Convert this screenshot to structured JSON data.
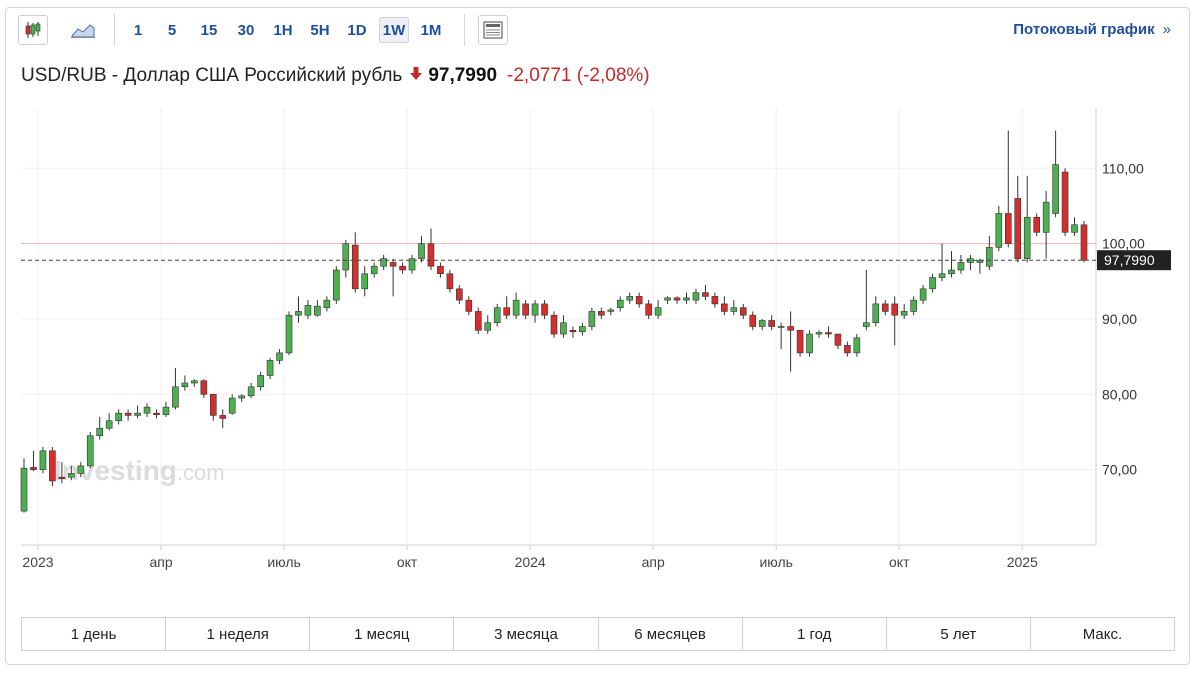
{
  "toolbar": {
    "chart_type_icons": [
      "candlestick-icon",
      "area-chart-icon"
    ],
    "intervals": [
      "1",
      "5",
      "15",
      "30",
      "1H",
      "5H",
      "1D",
      "1W",
      "1M"
    ],
    "active_interval": "1W",
    "layout_icon": "layout-icon",
    "stream_label": "Потоковый график",
    "stream_arrow": "»"
  },
  "quote": {
    "name": "USD/RUB - Доллар США Российский рубль",
    "direction": "down",
    "price": "97,7990",
    "change": "-2,0771",
    "change_pct": "(-2,08%)"
  },
  "watermark": {
    "text_dark": "Investing",
    "text_light": ".com"
  },
  "chart_data": {
    "type": "candlestick",
    "x_ticks": [
      "2023",
      "апр",
      "июль",
      "окт",
      "2024",
      "апр",
      "июль",
      "окт",
      "2025"
    ],
    "y_ticks": [
      "70,00",
      "80,00",
      "90,00",
      "100,00",
      "110,00"
    ],
    "y_tick_values": [
      70,
      80,
      90,
      100,
      110
    ],
    "ylim": [
      60,
      118
    ],
    "reference_level": 100.0,
    "current_price": 97.799,
    "current_price_label": "97,7990",
    "colors": {
      "up": "#4caf50",
      "down": "#d32f2f",
      "wick": "#333333",
      "reference": "#f4b8b0"
    },
    "candles": [
      [
        64.5,
        70.2,
        64.3,
        71.5
      ],
      [
        70.3,
        70.0,
        69.8,
        72.5
      ],
      [
        70.0,
        72.5,
        69.5,
        73.0
      ],
      [
        72.5,
        68.5,
        67.8,
        73.0
      ],
      [
        69.0,
        68.8,
        68.2,
        71.0
      ],
      [
        69.0,
        69.5,
        68.6,
        70.5
      ],
      [
        69.5,
        70.5,
        69.0,
        71.0
      ],
      [
        70.5,
        74.5,
        70.2,
        75.0
      ],
      [
        74.5,
        75.5,
        74.0,
        77.0
      ],
      [
        75.5,
        76.5,
        75.2,
        77.5
      ],
      [
        76.5,
        77.5,
        76.0,
        78.0
      ],
      [
        77.5,
        77.2,
        76.5,
        78.0
      ],
      [
        77.2,
        77.5,
        76.8,
        78.5
      ],
      [
        77.5,
        78.3,
        77.0,
        78.8
      ],
      [
        77.5,
        77.3,
        76.8,
        78.0
      ],
      [
        77.3,
        78.3,
        77.0,
        79.0
      ],
      [
        78.3,
        81.0,
        78.0,
        83.5
      ],
      [
        81.0,
        81.5,
        80.5,
        82.5
      ],
      [
        81.5,
        81.8,
        81.0,
        82.0
      ],
      [
        81.8,
        80.0,
        79.5,
        82.0
      ],
      [
        80.0,
        77.2,
        76.5,
        80.0
      ],
      [
        77.2,
        76.8,
        75.5,
        78.0
      ],
      [
        77.5,
        79.5,
        77.3,
        80.0
      ],
      [
        79.5,
        79.8,
        79.0,
        80.0
      ],
      [
        79.8,
        81.0,
        79.5,
        81.5
      ],
      [
        81.0,
        82.5,
        80.5,
        83.0
      ],
      [
        82.5,
        84.5,
        82.0,
        84.8
      ],
      [
        84.5,
        85.5,
        84.0,
        86.0
      ],
      [
        85.5,
        90.5,
        85.2,
        91.0
      ],
      [
        90.5,
        91.0,
        89.5,
        93.0
      ],
      [
        90.5,
        91.8,
        90.0,
        92.5
      ],
      [
        90.5,
        91.7,
        90.3,
        92.5
      ],
      [
        91.5,
        92.5,
        91.0,
        93.0
      ],
      [
        92.5,
        96.5,
        92.0,
        97.0
      ],
      [
        96.5,
        100.0,
        95.5,
        100.5
      ],
      [
        99.8,
        94.0,
        93.5,
        101.5
      ],
      [
        94.0,
        96.0,
        93.0,
        97.0
      ],
      [
        96.0,
        97.0,
        95.5,
        97.5
      ],
      [
        97.0,
        98.0,
        96.5,
        98.5
      ],
      [
        97.5,
        97.0,
        93.0,
        98.0
      ],
      [
        97.0,
        96.5,
        96.0,
        97.5
      ],
      [
        96.5,
        98.0,
        96.0,
        98.5
      ],
      [
        98.0,
        100.0,
        97.5,
        101.0
      ],
      [
        100.0,
        97.0,
        96.5,
        102.0
      ],
      [
        97.0,
        96.0,
        95.5,
        97.5
      ],
      [
        96.0,
        94.0,
        93.5,
        96.5
      ],
      [
        94.0,
        92.5,
        92.0,
        94.5
      ],
      [
        92.5,
        91.0,
        90.5,
        93.0
      ],
      [
        91.0,
        88.5,
        88.0,
        91.5
      ],
      [
        88.5,
        89.5,
        88.0,
        90.5
      ],
      [
        89.5,
        91.5,
        89.0,
        92.0
      ],
      [
        91.5,
        90.5,
        90.0,
        93.0
      ],
      [
        90.5,
        92.5,
        90.0,
        93.5
      ],
      [
        92.0,
        90.5,
        90.0,
        92.5
      ],
      [
        90.5,
        92.0,
        89.5,
        92.5
      ],
      [
        92.0,
        90.5,
        90.0,
        92.5
      ],
      [
        90.5,
        88.0,
        87.5,
        91.0
      ],
      [
        88.0,
        89.5,
        87.5,
        90.5
      ],
      [
        88.5,
        88.3,
        87.5,
        89.0
      ],
      [
        88.3,
        89.0,
        87.8,
        89.5
      ],
      [
        89.0,
        91.0,
        88.5,
        91.5
      ],
      [
        91.0,
        90.5,
        90.0,
        91.5
      ],
      [
        91.0,
        91.2,
        90.5,
        91.5
      ],
      [
        91.5,
        92.5,
        91.0,
        93.0
      ],
      [
        92.5,
        93.0,
        92.0,
        93.5
      ],
      [
        93.0,
        92.0,
        91.5,
        93.5
      ],
      [
        92.0,
        90.5,
        90.0,
        92.5
      ],
      [
        90.5,
        91.5,
        90.0,
        92.5
      ],
      [
        92.5,
        92.8,
        92.0,
        93.0
      ],
      [
        92.8,
        92.5,
        92.0,
        93.0
      ],
      [
        92.5,
        92.8,
        92.0,
        93.5
      ],
      [
        92.5,
        93.5,
        92.0,
        94.0
      ],
      [
        93.5,
        93.0,
        92.5,
        94.5
      ],
      [
        93.0,
        92.0,
        91.5,
        93.5
      ],
      [
        92.0,
        91.0,
        90.5,
        93.0
      ],
      [
        91.0,
        91.5,
        90.5,
        92.5
      ],
      [
        91.5,
        90.5,
        90.0,
        92.0
      ],
      [
        90.5,
        89.0,
        88.5,
        91.0
      ],
      [
        89.0,
        89.8,
        88.5,
        90.0
      ],
      [
        89.8,
        89.0,
        88.5,
        90.5
      ],
      [
        89.0,
        89.0,
        86.0,
        89.5
      ],
      [
        89.0,
        88.5,
        83.0,
        91.0
      ],
      [
        88.5,
        85.5,
        85.0,
        88.5
      ],
      [
        85.5,
        88.0,
        85.0,
        88.5
      ],
      [
        88.0,
        88.2,
        87.5,
        88.5
      ],
      [
        88.2,
        88.0,
        87.5,
        89.0
      ],
      [
        88.0,
        86.5,
        86.0,
        88.0
      ],
      [
        86.5,
        85.5,
        85.0,
        87.0
      ],
      [
        85.5,
        87.5,
        85.0,
        88.0
      ],
      [
        89.0,
        89.5,
        88.5,
        96.5
      ],
      [
        89.5,
        92.0,
        89.0,
        93.0
      ],
      [
        92.0,
        91.0,
        90.5,
        92.5
      ],
      [
        92.0,
        90.5,
        86.5,
        93.0
      ],
      [
        90.5,
        91.0,
        90.0,
        92.0
      ],
      [
        91.0,
        92.5,
        90.5,
        93.0
      ],
      [
        92.5,
        94.0,
        92.0,
        94.5
      ],
      [
        94.0,
        95.5,
        93.5,
        96.0
      ],
      [
        95.5,
        96.0,
        95.0,
        100.0
      ],
      [
        96.0,
        96.5,
        95.5,
        99.0
      ],
      [
        96.5,
        97.5,
        96.0,
        98.5
      ],
      [
        97.5,
        98.0,
        96.5,
        98.5
      ],
      [
        97.5,
        97.8,
        96.0,
        98.0
      ],
      [
        97.0,
        99.5,
        96.5,
        101.0
      ],
      [
        99.5,
        104.0,
        99.0,
        105.0
      ],
      [
        104.0,
        100.0,
        99.5,
        115.0
      ],
      [
        106.0,
        98.0,
        97.5,
        109.0
      ],
      [
        98.0,
        103.5,
        97.5,
        109.0
      ],
      [
        103.5,
        101.5,
        101.0,
        104.0
      ],
      [
        101.5,
        105.5,
        98.0,
        107.0
      ],
      [
        104.0,
        110.5,
        103.5,
        115.0
      ],
      [
        109.5,
        101.5,
        101.0,
        110.0
      ],
      [
        101.5,
        102.5,
        101.0,
        103.5
      ],
      [
        102.5,
        97.8,
        97.5,
        103.0
      ]
    ]
  },
  "ranges": [
    "1 день",
    "1 неделя",
    "1 месяц",
    "3 месяца",
    "6 месяцев",
    "1 год",
    "5 лет",
    "Макс."
  ]
}
